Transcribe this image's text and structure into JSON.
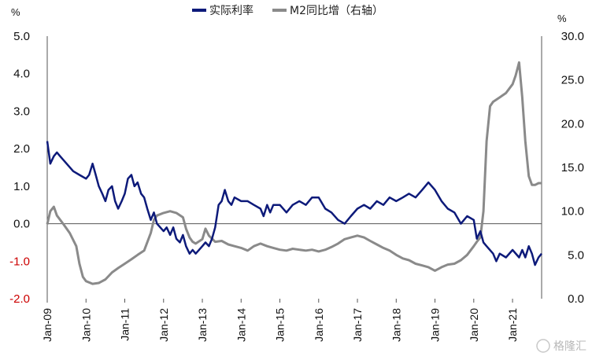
{
  "chart_data": {
    "type": "line",
    "left_unit": "%",
    "right_unit": "%",
    "watermark": "格隆汇",
    "x_ticks": [
      "Jan-09",
      "Jan-10",
      "Jan-11",
      "Jan-12",
      "Jan-13",
      "Jan-14",
      "Jan-15",
      "Jan-16",
      "Jan-17",
      "Jan-18",
      "Jan-19",
      "Jan-20",
      "Jan-21"
    ],
    "x_range": [
      2009.0,
      2021.75
    ],
    "y_left": {
      "range": [
        -2.0,
        5.0
      ],
      "ticks": [
        "5.0",
        "4.0",
        "3.0",
        "2.0",
        "1.0",
        "0.0",
        "-1.0",
        "-2.0"
      ],
      "tick_values": [
        5,
        4,
        3,
        2,
        1,
        0,
        -1,
        -2
      ],
      "negative_color": "#cc0000"
    },
    "y_right": {
      "range": [
        0.0,
        30.0
      ],
      "ticks": [
        "30.0",
        "25.0",
        "20.0",
        "15.0",
        "10.0",
        "5.0",
        "0.0"
      ],
      "tick_values": [
        30,
        25,
        20,
        15,
        10,
        5,
        0
      ]
    },
    "series": [
      {
        "name": "实际利率",
        "axis": "left",
        "color": "#0d1a7a",
        "points": [
          [
            2009.0,
            2.2
          ],
          [
            2009.08,
            1.6
          ],
          [
            2009.17,
            1.8
          ],
          [
            2009.25,
            1.9
          ],
          [
            2009.33,
            1.8
          ],
          [
            2009.5,
            1.6
          ],
          [
            2009.67,
            1.4
          ],
          [
            2009.83,
            1.3
          ],
          [
            2010.0,
            1.2
          ],
          [
            2010.08,
            1.3
          ],
          [
            2010.17,
            1.6
          ],
          [
            2010.25,
            1.3
          ],
          [
            2010.33,
            1.0
          ],
          [
            2010.42,
            0.8
          ],
          [
            2010.5,
            0.6
          ],
          [
            2010.58,
            0.9
          ],
          [
            2010.67,
            1.0
          ],
          [
            2010.75,
            0.6
          ],
          [
            2010.83,
            0.4
          ],
          [
            2010.92,
            0.6
          ],
          [
            2011.0,
            0.8
          ],
          [
            2011.08,
            1.2
          ],
          [
            2011.17,
            1.3
          ],
          [
            2011.25,
            1.0
          ],
          [
            2011.33,
            1.1
          ],
          [
            2011.42,
            0.8
          ],
          [
            2011.5,
            0.7
          ],
          [
            2011.58,
            0.4
          ],
          [
            2011.67,
            0.1
          ],
          [
            2011.75,
            0.3
          ],
          [
            2011.83,
            0.0
          ],
          [
            2012.0,
            -0.2
          ],
          [
            2012.08,
            -0.1
          ],
          [
            2012.17,
            -0.3
          ],
          [
            2012.25,
            -0.1
          ],
          [
            2012.33,
            -0.4
          ],
          [
            2012.42,
            -0.5
          ],
          [
            2012.5,
            -0.3
          ],
          [
            2012.58,
            -0.6
          ],
          [
            2012.67,
            -0.8
          ],
          [
            2012.75,
            -0.7
          ],
          [
            2012.83,
            -0.8
          ],
          [
            2013.0,
            -0.6
          ],
          [
            2013.08,
            -0.5
          ],
          [
            2013.17,
            -0.6
          ],
          [
            2013.25,
            -0.4
          ],
          [
            2013.33,
            -0.1
          ],
          [
            2013.42,
            0.5
          ],
          [
            2013.5,
            0.6
          ],
          [
            2013.58,
            0.9
          ],
          [
            2013.67,
            0.6
          ],
          [
            2013.75,
            0.5
          ],
          [
            2013.83,
            0.7
          ],
          [
            2014.0,
            0.6
          ],
          [
            2014.17,
            0.6
          ],
          [
            2014.33,
            0.5
          ],
          [
            2014.5,
            0.4
          ],
          [
            2014.58,
            0.2
          ],
          [
            2014.67,
            0.5
          ],
          [
            2014.75,
            0.3
          ],
          [
            2014.83,
            0.5
          ],
          [
            2015.0,
            0.5
          ],
          [
            2015.17,
            0.3
          ],
          [
            2015.33,
            0.5
          ],
          [
            2015.5,
            0.6
          ],
          [
            2015.67,
            0.5
          ],
          [
            2015.83,
            0.7
          ],
          [
            2016.0,
            0.7
          ],
          [
            2016.17,
            0.4
          ],
          [
            2016.33,
            0.3
          ],
          [
            2016.5,
            0.1
          ],
          [
            2016.67,
            0.0
          ],
          [
            2016.83,
            0.2
          ],
          [
            2017.0,
            0.4
          ],
          [
            2017.17,
            0.5
          ],
          [
            2017.33,
            0.4
          ],
          [
            2017.5,
            0.6
          ],
          [
            2017.67,
            0.5
          ],
          [
            2017.83,
            0.7
          ],
          [
            2018.0,
            0.6
          ],
          [
            2018.17,
            0.7
          ],
          [
            2018.33,
            0.8
          ],
          [
            2018.5,
            0.7
          ],
          [
            2018.67,
            0.9
          ],
          [
            2018.83,
            1.1
          ],
          [
            2019.0,
            0.9
          ],
          [
            2019.17,
            0.6
          ],
          [
            2019.33,
            0.4
          ],
          [
            2019.5,
            0.3
          ],
          [
            2019.67,
            0.0
          ],
          [
            2019.83,
            0.2
          ],
          [
            2020.0,
            0.1
          ],
          [
            2020.08,
            -0.4
          ],
          [
            2020.17,
            -0.2
          ],
          [
            2020.25,
            -0.5
          ],
          [
            2020.33,
            -0.6
          ],
          [
            2020.5,
            -0.8
          ],
          [
            2020.58,
            -1.0
          ],
          [
            2020.67,
            -0.8
          ],
          [
            2020.83,
            -0.9
          ],
          [
            2021.0,
            -0.7
          ],
          [
            2021.17,
            -0.9
          ],
          [
            2021.25,
            -0.7
          ],
          [
            2021.33,
            -0.9
          ],
          [
            2021.42,
            -0.6
          ],
          [
            2021.5,
            -0.8
          ],
          [
            2021.58,
            -1.1
          ],
          [
            2021.67,
            -0.9
          ],
          [
            2021.75,
            -0.8
          ]
        ]
      },
      {
        "name": "M2同比增（右轴）",
        "axis": "right",
        "color": "#8a8a8a",
        "points": [
          [
            2009.0,
            8.5
          ],
          [
            2009.08,
            10.0
          ],
          [
            2009.17,
            10.5
          ],
          [
            2009.25,
            9.5
          ],
          [
            2009.42,
            8.5
          ],
          [
            2009.58,
            7.5
          ],
          [
            2009.75,
            6.0
          ],
          [
            2009.83,
            4.0
          ],
          [
            2009.92,
            2.5
          ],
          [
            2010.0,
            2.0
          ],
          [
            2010.17,
            1.7
          ],
          [
            2010.33,
            1.8
          ],
          [
            2010.5,
            2.2
          ],
          [
            2010.67,
            3.0
          ],
          [
            2010.83,
            3.5
          ],
          [
            2011.0,
            4.0
          ],
          [
            2011.17,
            4.5
          ],
          [
            2011.33,
            5.0
          ],
          [
            2011.5,
            5.5
          ],
          [
            2011.67,
            7.5
          ],
          [
            2011.75,
            9.0
          ],
          [
            2011.83,
            9.5
          ],
          [
            2012.0,
            9.8
          ],
          [
            2012.17,
            10.0
          ],
          [
            2012.33,
            9.8
          ],
          [
            2012.5,
            9.3
          ],
          [
            2012.58,
            8.0
          ],
          [
            2012.67,
            7.0
          ],
          [
            2012.75,
            6.5
          ],
          [
            2012.83,
            6.3
          ],
          [
            2013.0,
            6.8
          ],
          [
            2013.08,
            8.0
          ],
          [
            2013.17,
            7.2
          ],
          [
            2013.33,
            6.5
          ],
          [
            2013.5,
            6.6
          ],
          [
            2013.67,
            6.2
          ],
          [
            2013.83,
            6.0
          ],
          [
            2014.0,
            5.8
          ],
          [
            2014.17,
            5.5
          ],
          [
            2014.33,
            6.0
          ],
          [
            2014.5,
            6.3
          ],
          [
            2014.67,
            6.0
          ],
          [
            2014.83,
            5.8
          ],
          [
            2015.0,
            5.6
          ],
          [
            2015.17,
            5.5
          ],
          [
            2015.33,
            5.7
          ],
          [
            2015.5,
            5.6
          ],
          [
            2015.67,
            5.5
          ],
          [
            2015.83,
            5.6
          ],
          [
            2016.0,
            5.4
          ],
          [
            2016.17,
            5.6
          ],
          [
            2016.33,
            5.9
          ],
          [
            2016.5,
            6.3
          ],
          [
            2016.67,
            6.8
          ],
          [
            2016.83,
            7.0
          ],
          [
            2017.0,
            7.2
          ],
          [
            2017.17,
            7.0
          ],
          [
            2017.33,
            6.6
          ],
          [
            2017.5,
            6.2
          ],
          [
            2017.67,
            5.8
          ],
          [
            2017.83,
            5.5
          ],
          [
            2018.0,
            5.0
          ],
          [
            2018.17,
            4.6
          ],
          [
            2018.33,
            4.4
          ],
          [
            2018.5,
            4.0
          ],
          [
            2018.67,
            3.8
          ],
          [
            2018.83,
            3.6
          ],
          [
            2019.0,
            3.2
          ],
          [
            2019.17,
            3.6
          ],
          [
            2019.33,
            3.9
          ],
          [
            2019.5,
            4.0
          ],
          [
            2019.67,
            4.4
          ],
          [
            2019.83,
            5.0
          ],
          [
            2020.0,
            6.0
          ],
          [
            2020.08,
            6.5
          ],
          [
            2020.17,
            7.0
          ],
          [
            2020.25,
            10.0
          ],
          [
            2020.33,
            18.0
          ],
          [
            2020.42,
            22.0
          ],
          [
            2020.5,
            22.5
          ],
          [
            2020.67,
            23.0
          ],
          [
            2020.83,
            23.5
          ],
          [
            2021.0,
            24.5
          ],
          [
            2021.08,
            25.5
          ],
          [
            2021.17,
            27.0
          ],
          [
            2021.25,
            23.0
          ],
          [
            2021.33,
            18.0
          ],
          [
            2021.42,
            14.0
          ],
          [
            2021.5,
            13.0
          ],
          [
            2021.58,
            13.0
          ],
          [
            2021.67,
            13.2
          ],
          [
            2021.75,
            13.2
          ]
        ]
      }
    ]
  }
}
